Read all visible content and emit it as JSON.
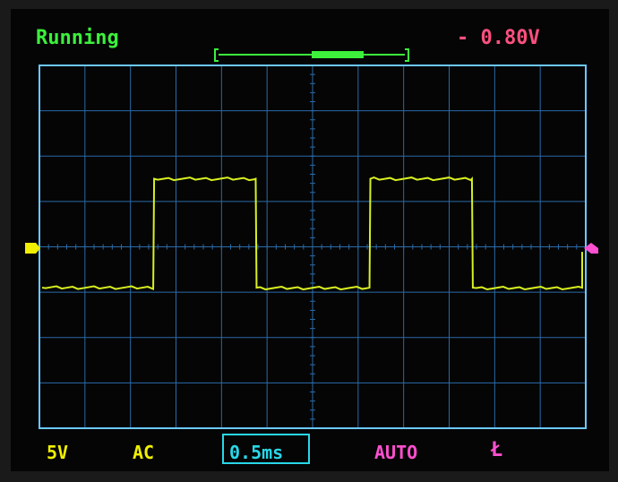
{
  "header": {
    "status": "Running",
    "trigger_level": "- 0.80V"
  },
  "footer": {
    "channel_scale": "5V",
    "coupling": "AC",
    "timebase": "0.5ms",
    "trigger_mode": "AUTO",
    "trigger_edge": "Ł"
  },
  "colors": {
    "status": "#3cf03c",
    "trace": "#d8f020",
    "grid": "#2a6aa8",
    "frame": "#6cc8ff",
    "trigger": "#ff5080",
    "trigger_mode": "#ff50d0",
    "timebase": "#28d8e8",
    "channel": "#f0f000"
  },
  "icons": {
    "ground_marker": "right-arrow-marker-icon",
    "trigger_marker": "left-arrow-marker-icon",
    "memory_position": "buffer-position-bar-icon"
  },
  "trace": {
    "type": "square-wave",
    "low_level_div": -0.9,
    "high_level_div": 1.5,
    "transitions_div": [
      2.5,
      4.75,
      7.25,
      9.5
    ]
  }
}
